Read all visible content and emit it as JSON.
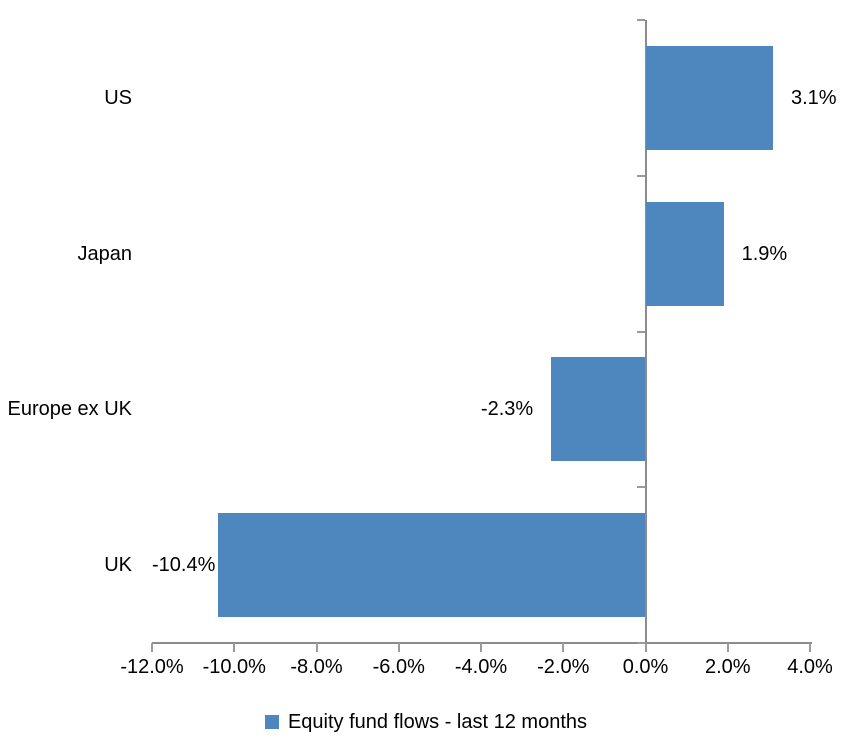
{
  "chart_data": {
    "type": "bar",
    "orientation": "horizontal",
    "title": "",
    "xlabel": "",
    "ylabel": "",
    "categories": [
      "US",
      "Japan",
      "Europe ex UK",
      "UK"
    ],
    "values": [
      3.1,
      1.9,
      -2.3,
      -10.4
    ],
    "value_labels": [
      "3.1%",
      "1.9%",
      "-2.3%",
      "-10.4%"
    ],
    "series_name": "Equity fund flows - last 12 months",
    "xlim": [
      -12,
      4
    ],
    "x_tick_step": 2,
    "x_tick_labels": [
      "-12.0%",
      "-10.0%",
      "-8.0%",
      "-6.0%",
      "-4.0%",
      "-2.0%",
      "0.0%",
      "2.0%",
      "4.0%"
    ],
    "grid": false,
    "legend_position": "bottom",
    "bar_color": "#4E86BE",
    "axis_color": "#8C8C8C",
    "tick_color": "#9B9B9B",
    "text_color": "#000000"
  },
  "legend": {
    "label": "Equity fund flows - last 12 months"
  }
}
